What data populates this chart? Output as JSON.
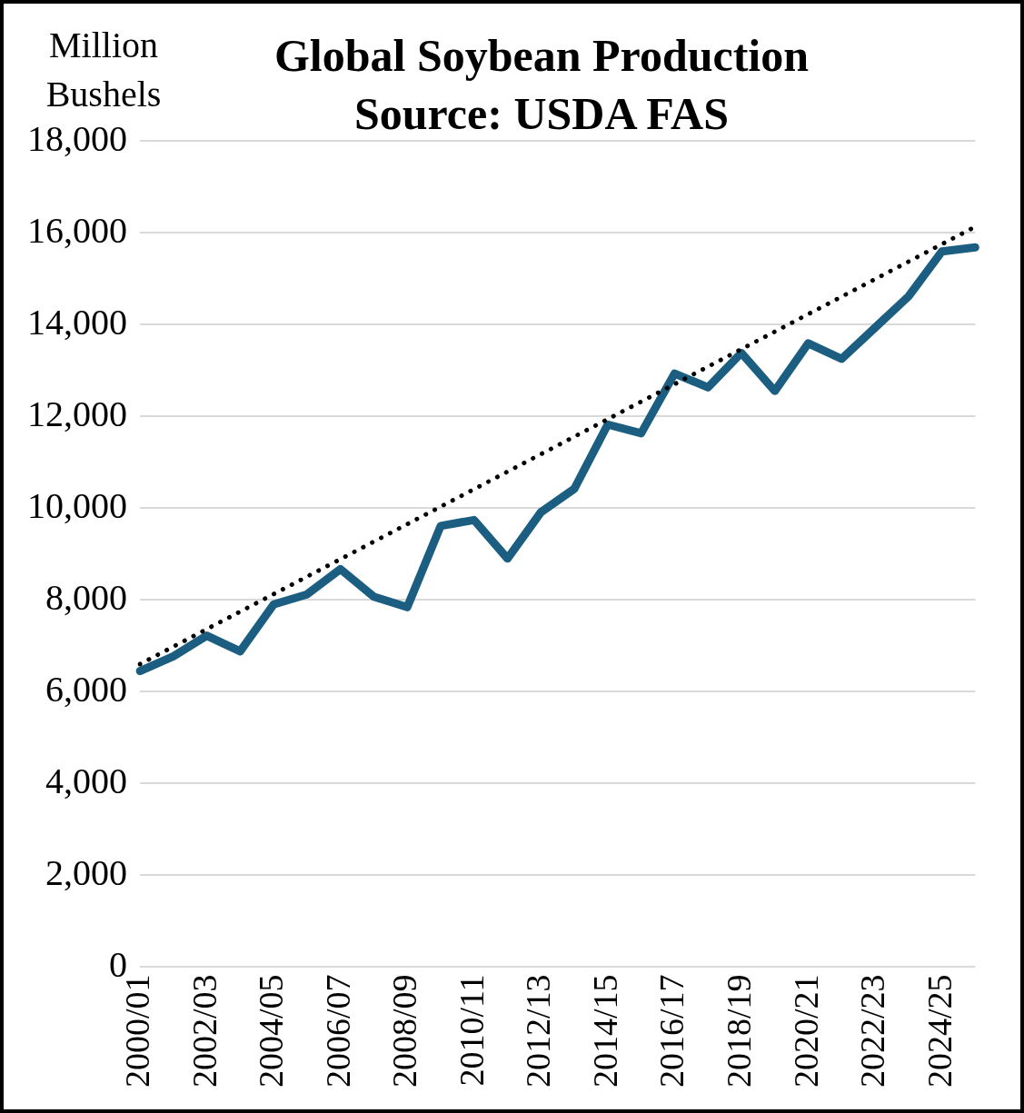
{
  "chart_data": {
    "type": "line",
    "title": "Global Soybean Production\nSource: USDA FAS",
    "ylabel": "Million\nBushels",
    "categories": [
      "2000/01",
      null,
      "2002/03",
      null,
      "2004/05",
      null,
      "2006/07",
      null,
      "2008/09",
      null,
      "2010/11",
      null,
      "2012/13",
      null,
      "2014/15",
      null,
      "2016/17",
      null,
      "2018/19",
      null,
      "2020/21",
      null,
      "2022/23",
      null,
      "2024/25",
      null
    ],
    "series": [
      {
        "color": "#1b5e82",
        "line_style": "solid",
        "values": [
          6450,
          6770,
          7220,
          6880,
          7900,
          8120,
          8670,
          8070,
          7840,
          9610,
          9740,
          8900,
          9910,
          10420,
          11820,
          11630,
          12930,
          12630,
          13380,
          12550,
          13590,
          13250,
          13930,
          14610,
          15590,
          15680
        ]
      },
      {
        "color": "#000000",
        "line_style": "dotted",
        "values": [
          6600,
          null,
          null,
          null,
          null,
          null,
          null,
          null,
          null,
          null,
          null,
          null,
          null,
          null,
          null,
          null,
          null,
          null,
          null,
          null,
          null,
          null,
          null,
          null,
          null,
          16130
        ]
      }
    ],
    "ylim": [
      0,
      18000
    ],
    "yticks": [
      0,
      {
        "value": 2000,
        "label": "2,000"
      },
      {
        "value": 4000,
        "label": "4,000"
      },
      {
        "value": 6000,
        "label": "6,000"
      },
      {
        "value": 8000,
        "label": "8,000"
      },
      {
        "value": 10000,
        "label": "10,000"
      },
      {
        "value": 12000,
        "label": "12,000"
      },
      {
        "value": 14000,
        "label": "14,000"
      },
      {
        "value": 16000,
        "label": "16,000"
      },
      {
        "value": 18000,
        "label": "18,000"
      }
    ],
    "grid": "y",
    "legend": false,
    "marker": "none"
  }
}
